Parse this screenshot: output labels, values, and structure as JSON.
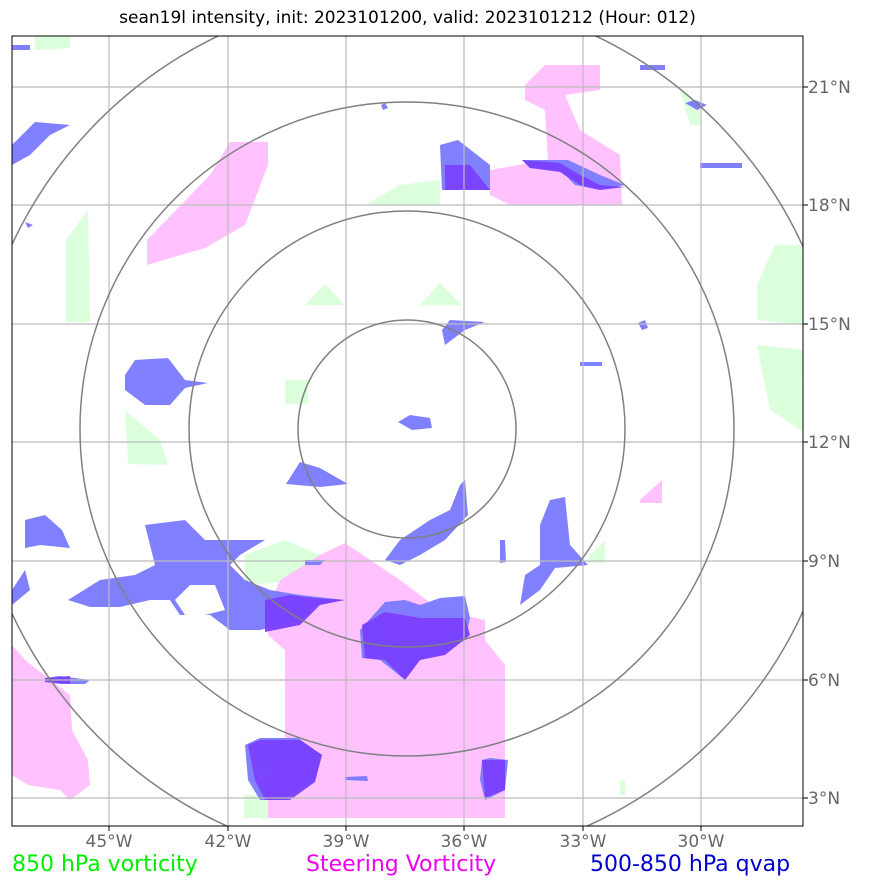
{
  "title": "sean19l intensity, init: 2023101200, valid: 2023101212 (Hour: 012)",
  "lon_ticks": [
    "45°W",
    "42°W",
    "39°W",
    "36°W",
    "33°W",
    "30°W"
  ],
  "lat_ticks": [
    "21°N",
    "18°N",
    "15°N",
    "12°N",
    "9°N",
    "6°N",
    "3°N"
  ],
  "legend": [
    {
      "label": "850 hPa vorticity",
      "color": "#00ee00"
    },
    {
      "label": "Steering Vorticity",
      "color": "#ee00ee"
    },
    {
      "label": "500-850 hPa qvap",
      "color": "#0000cc"
    }
  ],
  "colors": {
    "vorticity_850": "#d8ffd8",
    "steering_vorticity": "#ffbfff",
    "qvap": "#7a7aff",
    "qvap_overlap": "#7a40ff",
    "grid": "#bbbbbb",
    "range_rings": "#808080"
  }
}
